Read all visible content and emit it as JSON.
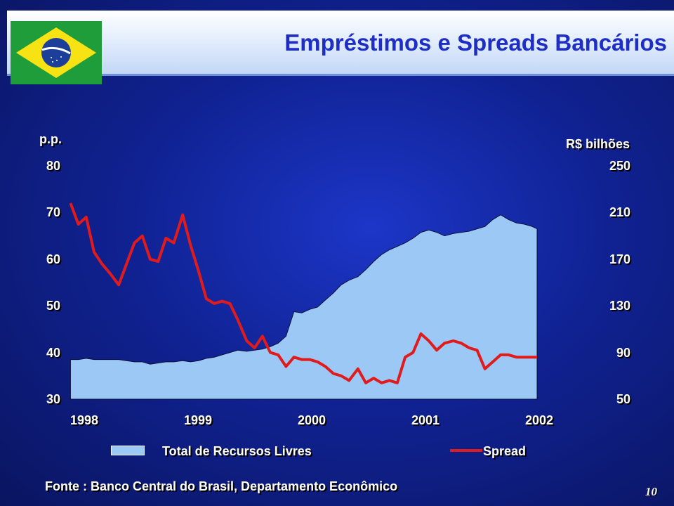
{
  "slide": {
    "title": "Empréstimos e Spreads Bancários",
    "source": "Fonte : Banco Central do Brasil, Departamento Econômico",
    "page_number": "10"
  },
  "colors": {
    "area_fill": "#9cc8f5",
    "spread_line": "#e11b1b",
    "title": "#1e2ec4"
  },
  "chart_data": {
    "type": "area+line",
    "left_axis": {
      "label": "p.p.",
      "ticks": [
        "80",
        "70",
        "60",
        "50",
        "40",
        "30"
      ],
      "range": [
        30,
        80
      ]
    },
    "right_axis": {
      "label": "R$ bilhões",
      "ticks": [
        "250",
        "210",
        "170",
        "130",
        "90",
        "50"
      ],
      "range": [
        50,
        250
      ]
    },
    "x_ticks": [
      "1998",
      "1999",
      "2000",
      "2001",
      "2002"
    ],
    "x_range": [
      1998.0,
      2002.6
    ],
    "grid": false,
    "legend": {
      "position": "bottom",
      "items": [
        "Total de Recursos Livres",
        "Spread"
      ]
    },
    "series": [
      {
        "name": "Total de Recursos Livres",
        "type": "area",
        "axis": "right",
        "x": [
          1997.86,
          1997.94,
          1998.02,
          1998.1,
          1998.18,
          1998.26,
          1998.35,
          1998.43,
          1998.51,
          1998.59,
          1998.67,
          1998.75,
          1998.83,
          1998.91,
          1999.0,
          1999.08,
          1999.16,
          1999.24,
          1999.32,
          1999.4,
          1999.48,
          1999.56,
          1999.65,
          1999.73,
          1999.81,
          1999.89,
          1999.97,
          2000.05,
          2000.13,
          2000.21,
          2000.29,
          2000.37,
          2000.45,
          2000.53,
          2000.61,
          2000.69,
          2000.78,
          2000.86,
          2000.94,
          2001.02,
          2001.1,
          2001.18,
          2001.26,
          2001.34,
          2001.42,
          2001.5,
          2001.58,
          2001.66,
          2001.75,
          2001.83,
          2001.91,
          2001.99,
          2002.07,
          2002.15,
          2002.23,
          2002.31,
          2002.39,
          2002.47,
          2002.55,
          2002.6
        ],
        "values": [
          84,
          84,
          85,
          84,
          84,
          84,
          84,
          83,
          82,
          82,
          80,
          81,
          82,
          82,
          83,
          82,
          83,
          85,
          86,
          88,
          90,
          92,
          91,
          92,
          93,
          95,
          98,
          104,
          125,
          124,
          127,
          129,
          135,
          141,
          148,
          152,
          155,
          161,
          168,
          174,
          178,
          181,
          184,
          188,
          193,
          195,
          193,
          190,
          192,
          193,
          194,
          196,
          198,
          204,
          208,
          204,
          201,
          200,
          198,
          196
        ]
      },
      {
        "name": "Spread",
        "type": "line",
        "axis": "left",
        "x": [
          1997.86,
          1997.94,
          1998.02,
          1998.1,
          1998.18,
          1998.26,
          1998.35,
          1998.43,
          1998.51,
          1998.59,
          1998.67,
          1998.75,
          1998.83,
          1998.91,
          1999.0,
          1999.08,
          1999.16,
          1999.24,
          1999.32,
          1999.4,
          1999.48,
          1999.56,
          1999.65,
          1999.73,
          1999.81,
          1999.89,
          1999.97,
          2000.05,
          2000.13,
          2000.21,
          2000.29,
          2000.37,
          2000.45,
          2000.53,
          2000.61,
          2000.69,
          2000.78,
          2000.86,
          2000.94,
          2001.02,
          2001.1,
          2001.18,
          2001.26,
          2001.34,
          2001.42,
          2001.5,
          2001.58,
          2001.66,
          2001.75,
          2001.83,
          2001.91,
          2001.99,
          2002.07,
          2002.15,
          2002.23,
          2002.31,
          2002.39,
          2002.47,
          2002.55,
          2002.6
        ],
        "values": [
          72,
          67.5,
          69,
          61.5,
          59,
          57,
          54.5,
          59,
          63.5,
          65,
          60,
          59.5,
          64.5,
          63.5,
          69.5,
          63,
          57.5,
          51.5,
          50.5,
          51,
          50.5,
          47,
          42.5,
          41,
          43.5,
          40,
          39.5,
          37,
          39,
          38.5,
          38.5,
          38,
          37,
          35.5,
          35,
          34,
          36.5,
          33.5,
          34.5,
          33.5,
          34,
          33.5,
          39,
          40,
          44,
          42.5,
          40.5,
          42,
          42.5,
          42,
          41,
          40.5,
          36.5,
          38,
          39.5,
          39.5,
          39,
          39,
          39,
          39
        ]
      }
    ]
  },
  "labels": {
    "left_axis_title": "p.p.",
    "right_axis_title": "R$ bilhões",
    "legend_area": "Total de Recursos Livres",
    "legend_line": "Spread"
  }
}
